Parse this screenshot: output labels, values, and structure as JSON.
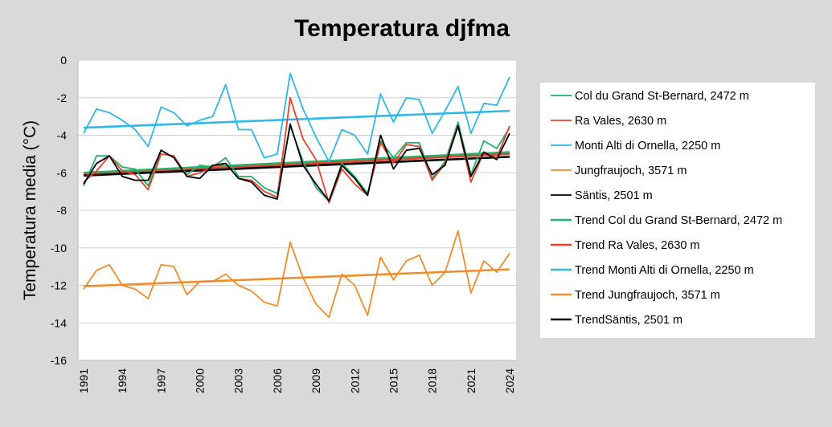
{
  "chart_data": {
    "type": "line",
    "title": "Temperatura djfma",
    "xlabel": "",
    "ylabel": "Temperatura media (°C)",
    "ylim": [
      -16,
      0
    ],
    "yticks": [
      0,
      -2,
      -4,
      -6,
      -8,
      -10,
      -12,
      -14,
      -16
    ],
    "ytick_labels": [
      "0",
      "-2",
      "-4",
      "-6",
      "-8",
      "-10",
      "-12",
      "-14",
      "-16"
    ],
    "xlim": [
      1991,
      2024
    ],
    "xticks": [
      1991,
      1994,
      1997,
      2000,
      2003,
      2006,
      2009,
      2012,
      2015,
      2018,
      2021,
      2024
    ],
    "xtick_labels": [
      "1991",
      "1994",
      "1997",
      "2000",
      "2003",
      "2006",
      "2009",
      "2012",
      "2015",
      "2018",
      "2021",
      "2024"
    ],
    "grid": "horizontal",
    "legend_position": "right",
    "x": [
      1991,
      1992,
      1993,
      1994,
      1995,
      1996,
      1997,
      1998,
      1999,
      2000,
      2001,
      2002,
      2003,
      2004,
      2005,
      2006,
      2007,
      2008,
      2009,
      2010,
      2011,
      2012,
      2013,
      2014,
      2015,
      2016,
      2017,
      2018,
      2019,
      2020,
      2021,
      2022,
      2023,
      2024
    ],
    "series": [
      {
        "name": "Col du Grand St-Bernard, 2472 m",
        "color": "#1fb36b",
        "kind": "data",
        "values": [
          -6.7,
          -5.1,
          -5.1,
          -5.7,
          -5.8,
          -6.7,
          -4.8,
          -5.2,
          -6.1,
          -5.6,
          -5.7,
          -5.2,
          -6.2,
          -6.2,
          -6.8,
          -7.1,
          -3.5,
          -5.4,
          -6.8,
          -7.5,
          -5.5,
          -6.2,
          -7.1,
          -4.3,
          -5.2,
          -4.4,
          -4.4,
          -6.3,
          -5.4,
          -3.3,
          -6.1,
          -4.3,
          -4.7,
          -3.6
        ]
      },
      {
        "name": "Ra Vales, 2630 m",
        "color": "#e8412c",
        "kind": "data",
        "values": [
          -6.5,
          -5.9,
          -5.1,
          -5.9,
          -6.1,
          -6.9,
          -5.0,
          -5.1,
          -6.2,
          -6.0,
          -5.7,
          -5.5,
          -6.3,
          -6.4,
          -7.0,
          -7.3,
          -2.0,
          -4.2,
          -5.3,
          -7.6,
          -5.8,
          -6.6,
          -7.2,
          -4.4,
          -5.5,
          -4.5,
          -4.6,
          -6.4,
          -5.5,
          -3.5,
          -6.5,
          -4.9,
          -5.2,
          -3.5
        ]
      },
      {
        "name": "Monti Alti di Ornella, 2250 m",
        "color": "#2eb7ea",
        "kind": "data",
        "values": [
          -3.9,
          -2.6,
          -2.8,
          -3.2,
          -3.7,
          -4.6,
          -2.5,
          -2.8,
          -3.5,
          -3.2,
          -3.0,
          -1.3,
          -3.7,
          -3.7,
          -5.2,
          -5.0,
          -0.7,
          -2.6,
          -4.1,
          -5.4,
          -3.7,
          -4.0,
          -5.0,
          -1.8,
          -3.3,
          -2.0,
          -2.1,
          -3.9,
          -2.7,
          -1.4,
          -3.9,
          -2.3,
          -2.4,
          -0.9
        ]
      },
      {
        "name": "Jungfraujoch, 3571 m",
        "color": "#f28c28",
        "kind": "data",
        "values": [
          -12.2,
          -11.2,
          -10.9,
          -12.0,
          -12.2,
          -12.7,
          -10.9,
          -11.0,
          -12.5,
          -11.8,
          -11.8,
          -11.4,
          -12.0,
          -12.3,
          -12.9,
          -13.1,
          -9.7,
          -11.6,
          -13.0,
          -13.7,
          -11.4,
          -12.0,
          -13.6,
          -10.5,
          -11.7,
          -10.7,
          -10.4,
          -12.0,
          -11.3,
          -9.1,
          -12.4,
          -10.7,
          -11.3,
          -10.3
        ]
      },
      {
        "name": "Säntis, 2501 m",
        "color": "#000000",
        "kind": "data",
        "values": [
          -6.6,
          -5.5,
          -5.1,
          -6.2,
          -6.4,
          -6.4,
          -4.8,
          -5.2,
          -6.2,
          -6.3,
          -5.6,
          -5.5,
          -6.3,
          -6.5,
          -7.2,
          -7.4,
          -3.4,
          -5.6,
          -6.6,
          -7.5,
          -5.6,
          -6.3,
          -7.2,
          -4.0,
          -5.8,
          -4.8,
          -4.7,
          -6.1,
          -5.6,
          -3.5,
          -6.2,
          -4.9,
          -5.3,
          -3.9
        ]
      },
      {
        "name": "Trend Col du Grand St-Bernard, 2472 m",
        "color": "#1fb36b",
        "kind": "trend",
        "start": -6.0,
        "end": -4.9
      },
      {
        "name": "Trend Ra Vales, 2630 m",
        "color": "#e8412c",
        "kind": "trend",
        "start": -6.1,
        "end": -5.0
      },
      {
        "name": "Trend Monti Alti di Ornella, 2250 m",
        "color": "#2eb7ea",
        "kind": "trend",
        "start": -3.6,
        "end": -2.7
      },
      {
        "name": "Trend Jungfraujoch, 3571 m",
        "color": "#f28c28",
        "kind": "trend",
        "start": -12.05,
        "end": -11.15
      },
      {
        "name": "TrendSäntis, 2501 m",
        "color": "#000000",
        "kind": "trend",
        "start": -6.15,
        "end": -5.15
      }
    ]
  }
}
